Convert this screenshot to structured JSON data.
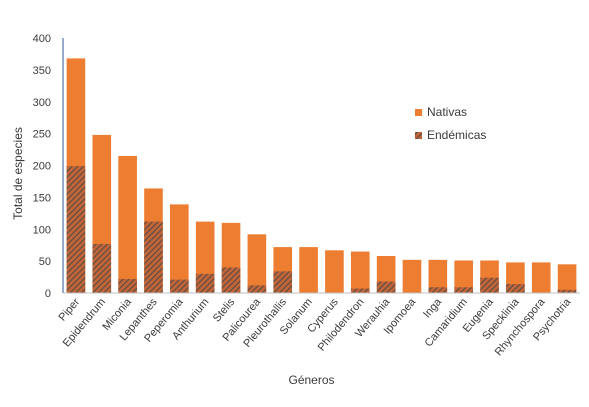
{
  "chart_data": {
    "type": "bar",
    "stacked": "overlay",
    "xlabel": "Géneros",
    "ylabel": "Total  de especies",
    "ylim": [
      0,
      400
    ],
    "yticks": [
      0,
      50,
      100,
      150,
      200,
      250,
      300,
      350,
      400
    ],
    "grid": false,
    "legend_position": "right",
    "categories": [
      "Piper",
      "Epidendrum",
      "Miconia",
      "Lepanthes",
      "Peperomia",
      "Anthurium",
      "Stelis",
      "Palicourea",
      "Pleurothallis",
      "Solanum",
      "Cyperus",
      "Philodendron",
      "Werauhia",
      "Ipomoea",
      "Inga",
      "Camaridium",
      "Eugenia",
      "Specklinia",
      "Rhynchospora",
      "Psychotria"
    ],
    "series": [
      {
        "name": "Nativas",
        "color": "#ed7d31",
        "pattern": "solid",
        "values": [
          368,
          248,
          215,
          164,
          139,
          112,
          110,
          92,
          72,
          72,
          67,
          65,
          58,
          52,
          52,
          51,
          51,
          48,
          48,
          45
        ]
      },
      {
        "name": "Endémicas",
        "color": "#7f5a45",
        "pattern": "hatch",
        "values": [
          199,
          77,
          22,
          112,
          21,
          30,
          40,
          12,
          34,
          0,
          0,
          7,
          18,
          0,
          9,
          9,
          24,
          14,
          0,
          5
        ]
      }
    ]
  }
}
